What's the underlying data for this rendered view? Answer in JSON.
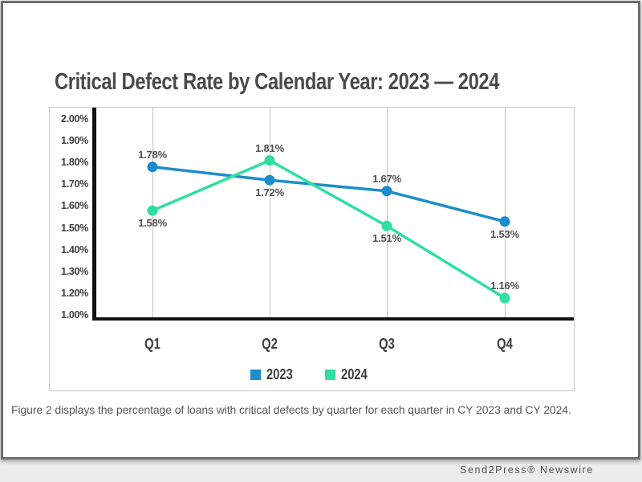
{
  "chart_data": {
    "type": "line",
    "title": "Critical Defect Rate by Calendar Year: 2023 — 2024",
    "categories": [
      "Q1",
      "Q2",
      "Q3",
      "Q4"
    ],
    "series": [
      {
        "name": "2023",
        "color": "#1b8dcc",
        "values": [
          1.78,
          1.72,
          1.67,
          1.53
        ],
        "point_labels": [
          "1.78%",
          "1.72%",
          "1.67%",
          "1.53%"
        ],
        "label_positions": [
          "above",
          "below",
          "above",
          "below"
        ]
      },
      {
        "name": "2024",
        "color": "#2ee0a0",
        "values": [
          1.58,
          1.81,
          1.51,
          1.16
        ],
        "point_labels": [
          "1.58%",
          "1.81%",
          "1.51%",
          "1.16%"
        ],
        "label_positions": [
          "below",
          "above",
          "below",
          "above"
        ]
      }
    ],
    "y_ticks": [
      "2.00%",
      "1.90%",
      "1.80%",
      "1.70%",
      "1.60%",
      "1.50%",
      "1.40%",
      "1.30%",
      "1.20%",
      "1.00%"
    ],
    "ylim": [
      1.0,
      2.0
    ],
    "grid": "vertical",
    "legend_position": "bottom-center",
    "axis_color": "#111111",
    "grid_color": "#c0c0c0"
  },
  "caption": "Figure 2 displays the percentage of loans with critical defects by quarter for each quarter in CY 2023 and CY 2024.",
  "watermark": "Send2Press® Newswire"
}
